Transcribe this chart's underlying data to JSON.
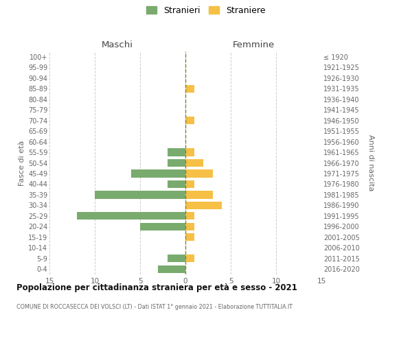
{
  "age_groups": [
    "100+",
    "95-99",
    "90-94",
    "85-89",
    "80-84",
    "75-79",
    "70-74",
    "65-69",
    "60-64",
    "55-59",
    "50-54",
    "45-49",
    "40-44",
    "35-39",
    "30-34",
    "25-29",
    "20-24",
    "15-19",
    "10-14",
    "5-9",
    "0-4"
  ],
  "birth_years": [
    "≤ 1920",
    "1921-1925",
    "1926-1930",
    "1931-1935",
    "1936-1940",
    "1941-1945",
    "1946-1950",
    "1951-1955",
    "1956-1960",
    "1961-1965",
    "1966-1970",
    "1971-1975",
    "1976-1980",
    "1981-1985",
    "1986-1990",
    "1991-1995",
    "1996-2000",
    "2001-2005",
    "2006-2010",
    "2011-2015",
    "2016-2020"
  ],
  "males": [
    0,
    0,
    0,
    0,
    0,
    0,
    0,
    0,
    0,
    -2,
    -2,
    -6,
    -2,
    -10,
    0,
    -12,
    -5,
    0,
    0,
    -2,
    -3
  ],
  "females": [
    0,
    0,
    0,
    1,
    0,
    0,
    1,
    0,
    0,
    1,
    2,
    3,
    1,
    3,
    4,
    1,
    1,
    1,
    0,
    1,
    0
  ],
  "male_color": "#7aab6e",
  "female_color": "#f5c045",
  "grid_color": "#cccccc",
  "center_line_color": "#808040",
  "xlim": [
    -15,
    15
  ],
  "xticks": [
    -15,
    -10,
    -5,
    0,
    5,
    10,
    15
  ],
  "xticklabels": [
    "15",
    "10",
    "5",
    "0",
    "5",
    "10",
    "15"
  ],
  "title": "Popolazione per cittadinanza straniera per età e sesso - 2021",
  "subtitle": "COMUNE DI ROCCASECCA DEI VOLSCI (LT) - Dati ISTAT 1° gennaio 2021 - Elaborazione TUTTITALIA.IT",
  "ylabel_left": "Fasce di età",
  "ylabel_right": "Anni di nascita",
  "header_left": "Maschi",
  "header_right": "Femmine",
  "legend_male": "Stranieri",
  "legend_female": "Straniere",
  "bar_height": 0.72,
  "bg_color": "#ffffff"
}
